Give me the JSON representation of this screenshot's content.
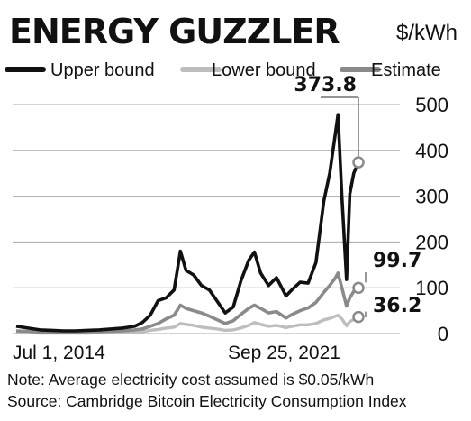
{
  "chart_data": {
    "type": "line",
    "title": "ENERGY GUZZLER",
    "unit": "$/kWh",
    "note": "Note: Average electricity cost assumed is $0.05/kWh",
    "source": "Source: Cambridge Bitcoin Electricity Consumption Index",
    "x_tick_labels": [
      "Jul 1, 2014",
      "Sep 25, 2021"
    ],
    "y_ticks": [
      0,
      100,
      200,
      300,
      400,
      500
    ],
    "ylim": [
      0,
      500
    ],
    "x_range": [
      "2014-07-01",
      "2021-09-25"
    ],
    "grid": true,
    "legend_position": "top",
    "callouts": [
      {
        "series": "Upper bound",
        "label": "373.8",
        "value": 373.8
      },
      {
        "series": "Estimate",
        "label": "99.7",
        "value": 99.7
      },
      {
        "series": "Lower bound",
        "label": "36.2",
        "value": 36.2
      }
    ],
    "colors": {
      "Upper bound": "#111111",
      "Lower bound": "#bdbdbd",
      "Estimate": "#8a8a8a",
      "gridline": "#aaaaaa",
      "marker": "#8a8a8a"
    },
    "x": [
      "2014-07-01",
      "2014-10-01",
      "2015-01-01",
      "2015-04-01",
      "2015-07-01",
      "2015-10-01",
      "2016-01-01",
      "2016-04-01",
      "2016-07-01",
      "2016-10-01",
      "2017-01-01",
      "2017-03-01",
      "2017-05-01",
      "2017-07-01",
      "2017-09-01",
      "2017-11-01",
      "2017-12-20",
      "2018-02-01",
      "2018-04-01",
      "2018-06-01",
      "2018-08-01",
      "2018-10-01",
      "2018-12-01",
      "2019-02-01",
      "2019-04-01",
      "2019-06-01",
      "2019-07-15",
      "2019-09-01",
      "2019-11-01",
      "2020-01-01",
      "2020-03-15",
      "2020-05-01",
      "2020-07-01",
      "2020-09-01",
      "2020-11-01",
      "2021-01-01",
      "2021-02-15",
      "2021-04-01",
      "2021-04-20",
      "2021-05-20",
      "2021-06-25",
      "2021-07-20",
      "2021-08-20",
      "2021-09-25"
    ],
    "series": [
      {
        "name": "Upper bound",
        "values": [
          16,
          12,
          8,
          7,
          6,
          6,
          7,
          8,
          10,
          12,
          16,
          24,
          40,
          72,
          78,
          95,
          180,
          138,
          128,
          105,
          95,
          70,
          45,
          58,
          115,
          160,
          178,
          132,
          105,
          122,
          82,
          96,
          112,
          110,
          155,
          290,
          350,
          440,
          478,
          300,
          118,
          305,
          350,
          373.8
        ]
      },
      {
        "name": "Lower bound",
        "values": [
          2,
          2,
          1,
          1,
          1,
          1,
          1,
          2,
          2,
          2,
          3,
          4,
          7,
          9,
          12,
          14,
          22,
          20,
          18,
          14,
          12,
          10,
          7,
          8,
          12,
          18,
          24,
          20,
          16,
          18,
          13,
          16,
          19,
          19,
          22,
          30,
          33,
          38,
          40,
          32,
          17,
          26,
          31,
          36.2
        ]
      },
      {
        "name": "Estimate",
        "values": [
          6,
          5,
          3,
          3,
          3,
          3,
          4,
          4,
          5,
          6,
          8,
          10,
          16,
          22,
          32,
          40,
          62,
          55,
          50,
          45,
          38,
          30,
          22,
          28,
          42,
          55,
          62,
          55,
          45,
          48,
          34,
          42,
          50,
          56,
          68,
          90,
          105,
          122,
          132,
          100,
          60,
          78,
          92,
          99.7
        ]
      }
    ]
  }
}
